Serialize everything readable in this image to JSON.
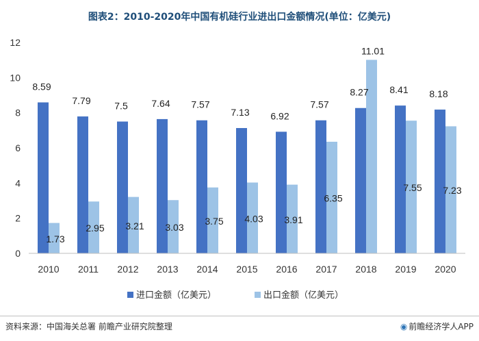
{
  "chart_data": {
    "type": "bar",
    "title": "图表2：2010-2020年中国有机硅行业进出口金额情况(单位：亿美元)",
    "categories": [
      "2010",
      "2011",
      "2012",
      "2013",
      "2014",
      "2015",
      "2016",
      "2017",
      "2018",
      "2019",
      "2020"
    ],
    "series": [
      {
        "name": "进口金额（亿美元）",
        "color": "#4472c4",
        "values": [
          8.59,
          7.79,
          7.5,
          7.64,
          7.57,
          7.13,
          6.92,
          7.57,
          8.27,
          8.41,
          8.18
        ]
      },
      {
        "name": "出口金额（亿美元）",
        "color": "#9dc3e6",
        "values": [
          1.73,
          2.95,
          3.21,
          3.03,
          3.75,
          4.03,
          3.91,
          6.35,
          11.01,
          7.55,
          7.23
        ]
      }
    ],
    "data_labels": [
      [
        "8.59",
        "7.79",
        "7.5",
        "7.64",
        "7.57",
        "7.13",
        "6.92",
        "7.57",
        "8.27",
        "8.41",
        "8.18"
      ],
      [
        "1.73",
        "2.95",
        "3.21",
        "3.03",
        "3.75",
        "4.03",
        "3.91",
        "6.35",
        "11.01",
        "7.55",
        "7.23"
      ]
    ],
    "yticks": [
      "0",
      "2",
      "4",
      "6",
      "8",
      "10",
      "12"
    ],
    "ylim": [
      0,
      12
    ],
    "grid": false,
    "legend_position": "bottom"
  },
  "footer": {
    "source": "资料来源：中国海关总署 前瞻产业研究院整理",
    "brand": "前瞻经济学人APP",
    "brand_icon": "qianzhan-logo-icon"
  }
}
